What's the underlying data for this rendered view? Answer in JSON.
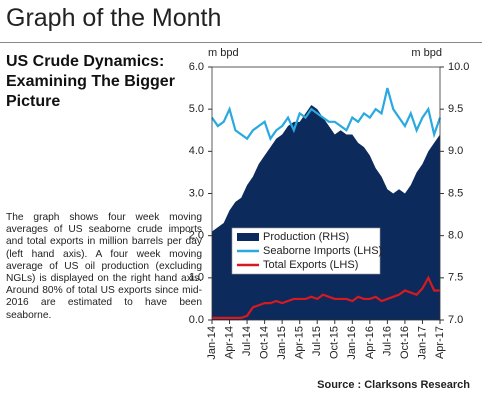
{
  "header": {
    "title": "Graph of the Month"
  },
  "article": {
    "heading": "US Crude Dynamics: Examining The Bigger Picture",
    "body": "The graph shows four week moving averages of US seaborne crude imports and total exports in million barrels per day (left hand axis). A four week moving average of US oil production (excluding NGLs) is displayed on the right hand axis. Around 80% of total US exports since mid-2016 are estimated to have been seaborne.",
    "source": "Source : Clarksons Research"
  },
  "chart_data": {
    "type": "line",
    "ylabel": "m bpd",
    "y2label": "m bpd",
    "categories": [
      "Jan-14",
      null,
      null,
      "Apr-14",
      null,
      null,
      "Jul-14",
      null,
      null,
      "Oct-14",
      null,
      null,
      "Jan-15",
      null,
      null,
      "Apr-15",
      null,
      null,
      "Jul-15",
      null,
      null,
      "Oct-15",
      null,
      null,
      "Jan-16",
      null,
      null,
      "Apr-16",
      null,
      null,
      "Jul-16",
      null,
      null,
      "Oct-16",
      null,
      null,
      "Jan-17",
      null,
      null,
      "Apr-17"
    ],
    "ylim": [
      0,
      6
    ],
    "yticks": [
      {
        "value": 0,
        "label": "0.0"
      },
      {
        "value": 1,
        "label": "1.0"
      },
      {
        "value": 2,
        "label": "2.0"
      },
      {
        "value": 3,
        "label": "3.0"
      },
      {
        "value": 4,
        "label": "4.0"
      },
      {
        "value": 5,
        "label": "5.0"
      },
      {
        "value": 6,
        "label": "6.0"
      }
    ],
    "y2lim": [
      7,
      10
    ],
    "y2ticks": [
      {
        "value": 7,
        "label": "7.0"
      },
      7.5,
      {
        "value": 8,
        "label": "8.0"
      },
      8.5,
      {
        "value": 9,
        "label": "9.0"
      },
      9.5,
      {
        "value": 10,
        "label": "10.0"
      }
    ],
    "legend": "center-left",
    "series": [
      {
        "name": "Production (RHS)",
        "color": "#0c2a5c",
        "axis": "y2",
        "style": "area",
        "values": [
          8.05,
          8.1,
          8.15,
          8.3,
          8.4,
          8.45,
          8.6,
          8.7,
          8.85,
          8.95,
          9.05,
          9.15,
          9.2,
          9.3,
          9.35,
          9.35,
          9.45,
          9.55,
          9.5,
          9.4,
          9.3,
          9.2,
          9.25,
          9.2,
          9.2,
          9.1,
          9.05,
          8.95,
          8.8,
          8.7,
          8.55,
          8.5,
          8.55,
          8.5,
          8.6,
          8.75,
          8.85,
          9.0,
          9.1,
          9.2
        ]
      },
      {
        "name": "Seaborne Imports (LHS)",
        "color": "#29a9e0",
        "values": [
          4.8,
          4.6,
          4.7,
          5.0,
          4.5,
          4.4,
          4.3,
          4.5,
          4.6,
          4.7,
          4.3,
          4.5,
          4.6,
          4.8,
          4.5,
          4.9,
          4.8,
          5.0,
          4.9,
          4.8,
          4.7,
          4.7,
          4.6,
          4.5,
          4.8,
          4.7,
          4.9,
          4.8,
          5.0,
          4.9,
          5.5,
          5.0,
          4.8,
          4.6,
          4.9,
          4.5,
          4.8,
          5.0,
          4.4,
          4.8
        ]
      },
      {
        "name": "Total Exports (LHS)",
        "color": "#d71920",
        "values": [
          0.05,
          0.05,
          0.05,
          0.05,
          0.05,
          0.05,
          0.1,
          0.3,
          0.35,
          0.4,
          0.4,
          0.45,
          0.4,
          0.45,
          0.5,
          0.5,
          0.5,
          0.55,
          0.5,
          0.6,
          0.55,
          0.5,
          0.5,
          0.5,
          0.45,
          0.55,
          0.5,
          0.5,
          0.55,
          0.45,
          0.5,
          0.55,
          0.6,
          0.7,
          0.65,
          0.6,
          0.75,
          1.0,
          0.7,
          0.7
        ]
      }
    ]
  }
}
